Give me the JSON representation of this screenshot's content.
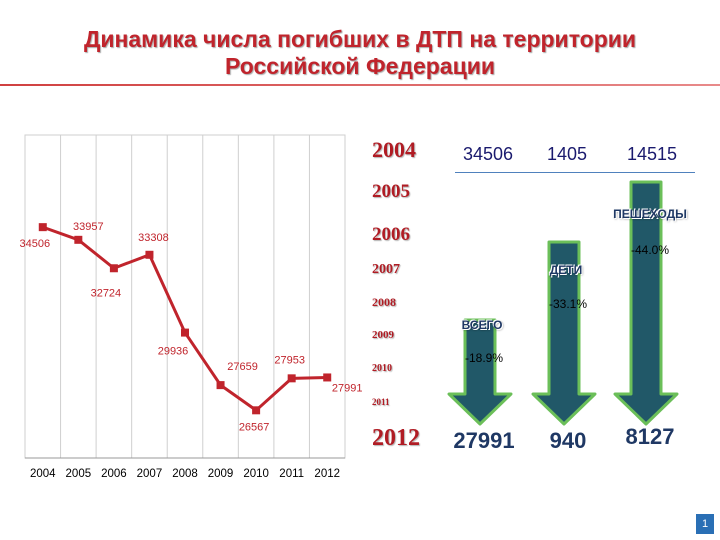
{
  "title_line1": "Динамика числа погибших в ДТП на территории",
  "title_line2": "Российской Федерации",
  "chart_data": {
    "type": "line",
    "x": [
      "2004",
      "2005",
      "2006",
      "2007",
      "2008",
      "2009",
      "2010",
      "2011",
      "2012"
    ],
    "series": [
      {
        "values": [
          34506,
          33957,
          32724,
          33308,
          29936,
          27659,
          26567,
          27953,
          27991
        ]
      }
    ],
    "data_labels": [
      "34506",
      "33957",
      "32724",
      "33308",
      "29936",
      "27659",
      "26567",
      "27953",
      "27991"
    ],
    "ylim": [
      24500,
      38500
    ],
    "grid": "vertical",
    "line_color": "#c0242c"
  },
  "year_list": [
    "2004",
    "2005",
    "2006",
    "2007",
    "2008",
    "2009",
    "2010",
    "2011",
    "2012"
  ],
  "values_2004": [
    "34506",
    "1405",
    "14515"
  ],
  "categories": [
    {
      "label": "ВСЕГО",
      "change": "-18.9%",
      "value_2012": "27991",
      "change_value": -18.9
    },
    {
      "label": "ДЕТИ",
      "change": "-33.1%",
      "value_2012": "940",
      "change_value": -33.1
    },
    {
      "label": "ПЕШЕХОДЫ",
      "change": "-44.0%",
      "value_2012": "8127",
      "change_value": -44.0
    }
  ],
  "arrow_color": "#215868",
  "arrow_outline": "#6bbf59",
  "page_number": "1"
}
